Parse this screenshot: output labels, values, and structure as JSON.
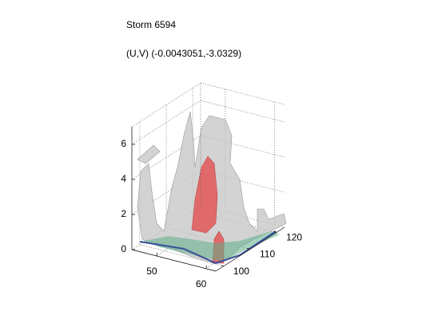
{
  "chart_data": {
    "type": "isosurface3d",
    "title": "Storm 6594",
    "subtitle": "(U,V) (-0.0043051,-3.0329)",
    "xlim": [
      45,
      62
    ],
    "xticks": [
      50,
      60
    ],
    "ylim": [
      97,
      123
    ],
    "yticks": [
      100,
      110,
      120
    ],
    "zlim": [
      0,
      7
    ],
    "zticks": [
      0,
      2,
      4,
      6
    ],
    "grid": true
  }
}
